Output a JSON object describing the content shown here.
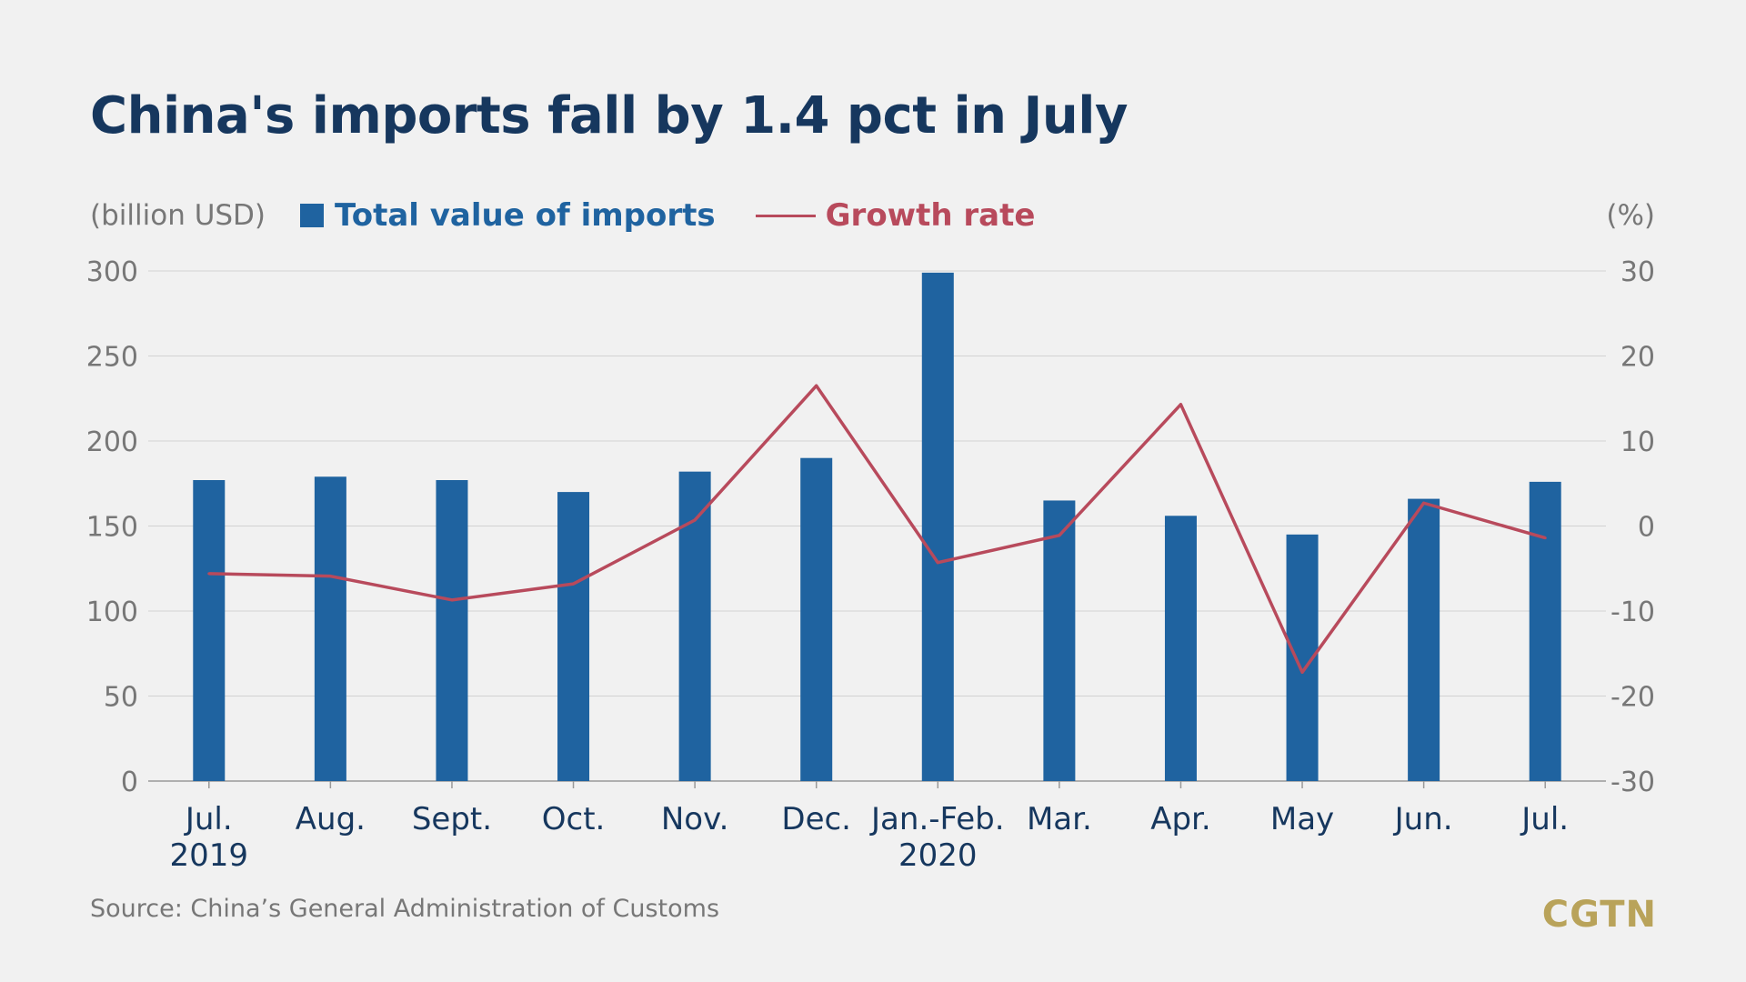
{
  "chart_data": {
    "type": "bar",
    "title": "China's imports fall by 1.4 pct in July",
    "left_unit": "(billion USD)",
    "right_unit": "(%)",
    "categories": [
      "Jul.|2019",
      "Aug.",
      "Sept.",
      "Oct.",
      "Nov.",
      "Dec.",
      "Jan.-Feb.|2020",
      "Mar.",
      "Apr.",
      "May",
      "Jun.",
      "Jul."
    ],
    "series": [
      {
        "name": "Total value of imports",
        "type": "bar",
        "axis": "left",
        "color": "#1f63a0",
        "values": [
          177,
          179,
          177,
          170,
          182,
          190,
          299,
          165,
          156,
          145,
          166,
          176
        ]
      },
      {
        "name": "Growth rate",
        "type": "line",
        "axis": "right",
        "color": "#b84a5c",
        "values": [
          -5.6,
          -5.9,
          -8.7,
          -6.8,
          0.7,
          16.5,
          -4.3,
          -1.1,
          14.3,
          -17.2,
          2.7,
          -1.4
        ]
      }
    ],
    "ylim": [
      0,
      300
    ],
    "yticks": [
      "0",
      "50",
      "100",
      "150",
      "200",
      "250",
      "300"
    ],
    "y2lim": [
      -30,
      30
    ],
    "y2ticks": [
      "-30",
      "-20",
      "-10",
      "0",
      "10",
      "20",
      "30"
    ],
    "grid": true,
    "legend": "top-left"
  },
  "source": "Source: China’s General Administration of Customs",
  "logo": "CGTN"
}
